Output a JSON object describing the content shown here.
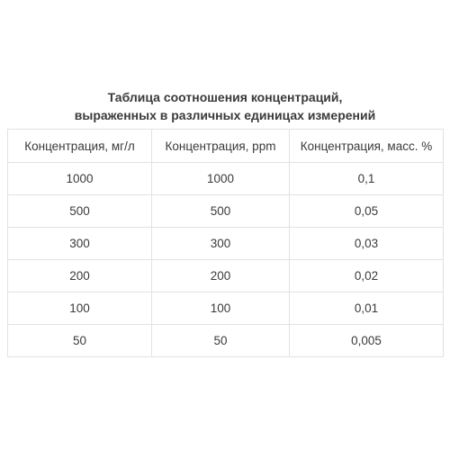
{
  "caption": {
    "line1": "Таблица соотношения концентраций,",
    "line2": "выраженных в различных единицах измерений"
  },
  "table": {
    "headers": [
      "Концентрация, мг/л",
      "Концентрация, ppm",
      "Концентрация, масс. %"
    ],
    "rows": [
      [
        "1000",
        "1000",
        "0,1"
      ],
      [
        "500",
        "500",
        "0,05"
      ],
      [
        "300",
        "300",
        "0,03"
      ],
      [
        "200",
        "200",
        "0,02"
      ],
      [
        "100",
        "100",
        "0,01"
      ],
      [
        "50",
        "50",
        "0,005"
      ]
    ]
  }
}
